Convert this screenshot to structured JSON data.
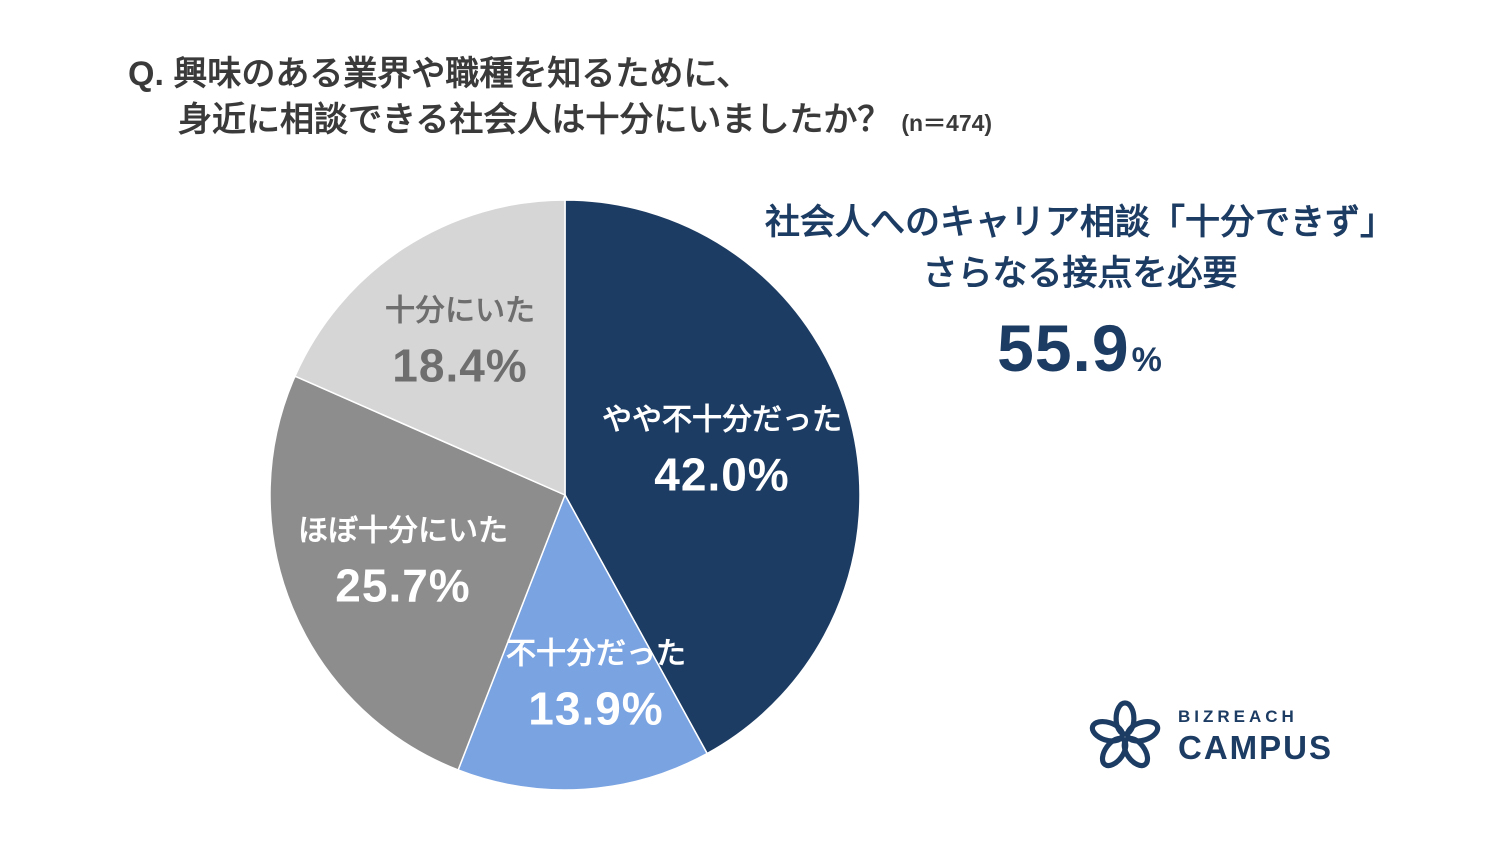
{
  "title": {
    "line1": "Q. 興味のある業界や職種を知るために、",
    "line2": "身近に相談できる社会人は十分にいましたか？",
    "sample": "(n＝474)"
  },
  "chart_data": {
    "type": "pie",
    "title": "身近に相談できる社会人は十分にいましたか？",
    "n": 474,
    "start_angle_deg": 0,
    "direction": "clockwise",
    "slices": [
      {
        "label": "やや不十分だった",
        "value": 42.0,
        "display": "42.0%",
        "color": "#1d3c63",
        "text_color": "#ffffff"
      },
      {
        "label": "不十分だった",
        "value": 13.9,
        "display": "13.9%",
        "color": "#7aa3e2",
        "text_color": "#ffffff"
      },
      {
        "label": "ほぼ十分にいた",
        "value": 25.7,
        "display": "25.7%",
        "color": "#8d8d8d",
        "text_color": "#ffffff"
      },
      {
        "label": "十分にいた",
        "value": 18.4,
        "display": "18.4%",
        "color": "#d6d6d6",
        "text_color": "#6e6e6e"
      }
    ]
  },
  "annotation": {
    "line1": "社会人へのキャリア相談「十分できず」",
    "line2": "さらなる接点を必要",
    "value": "55.9",
    "unit": "%"
  },
  "logo": {
    "top": "BIZREACH",
    "bottom": "CAMPUS",
    "color": "#1d3c63"
  }
}
